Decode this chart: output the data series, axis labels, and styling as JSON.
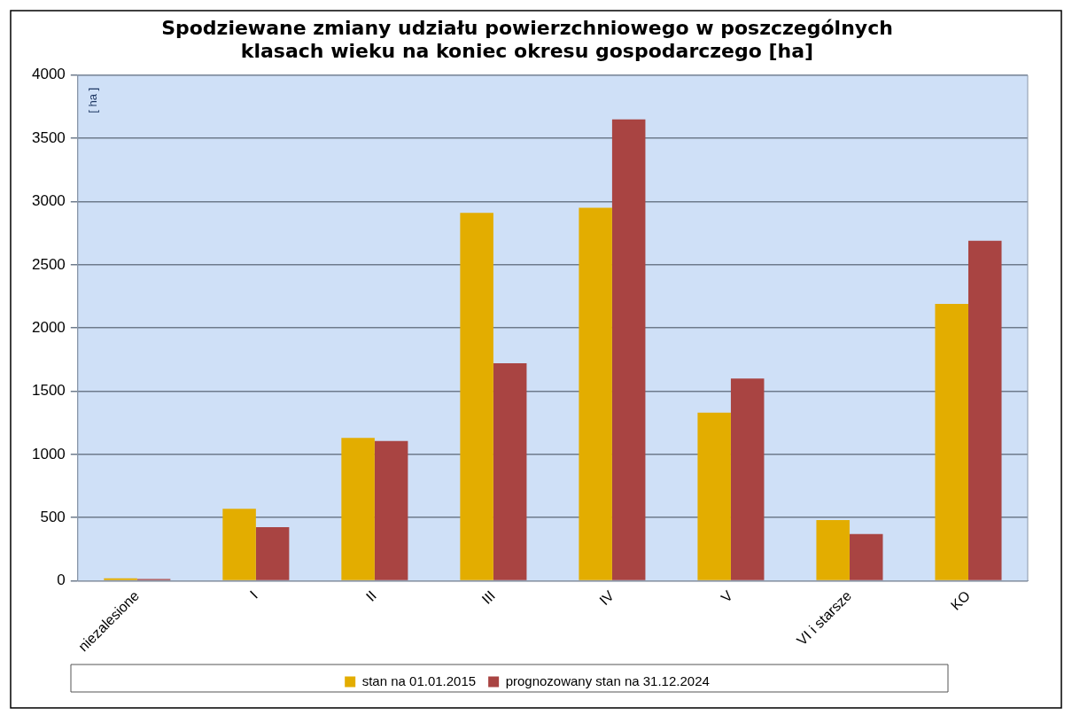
{
  "chart_data": {
    "type": "bar",
    "title": [
      "Spodziewane zmiany udziału powierzchniowego w poszczególnych",
      "klasach wieku na koniec okresu gospodarczego [ha]"
    ],
    "ylabel": "[ ha ]",
    "categories": [
      "niezalesione",
      "I",
      "II",
      "III",
      "IV",
      "V",
      "VI i starsze",
      "KO"
    ],
    "series": [
      {
        "name": "stan na 01.01.2015",
        "color": "#e3ad00",
        "values": [
          20,
          570,
          1130,
          2910,
          2950,
          1330,
          480,
          2190
        ]
      },
      {
        "name": "prognozowany stan na 31.12.2024",
        "color": "#a94442",
        "values": [
          15,
          425,
          1105,
          1720,
          3650,
          1600,
          370,
          2690
        ]
      }
    ],
    "ylim": [
      0,
      4000
    ],
    "yticks": [
      0,
      500,
      1000,
      1500,
      2000,
      2500,
      3000,
      3500,
      4000
    ],
    "grid": "y",
    "legend": "bottom"
  }
}
